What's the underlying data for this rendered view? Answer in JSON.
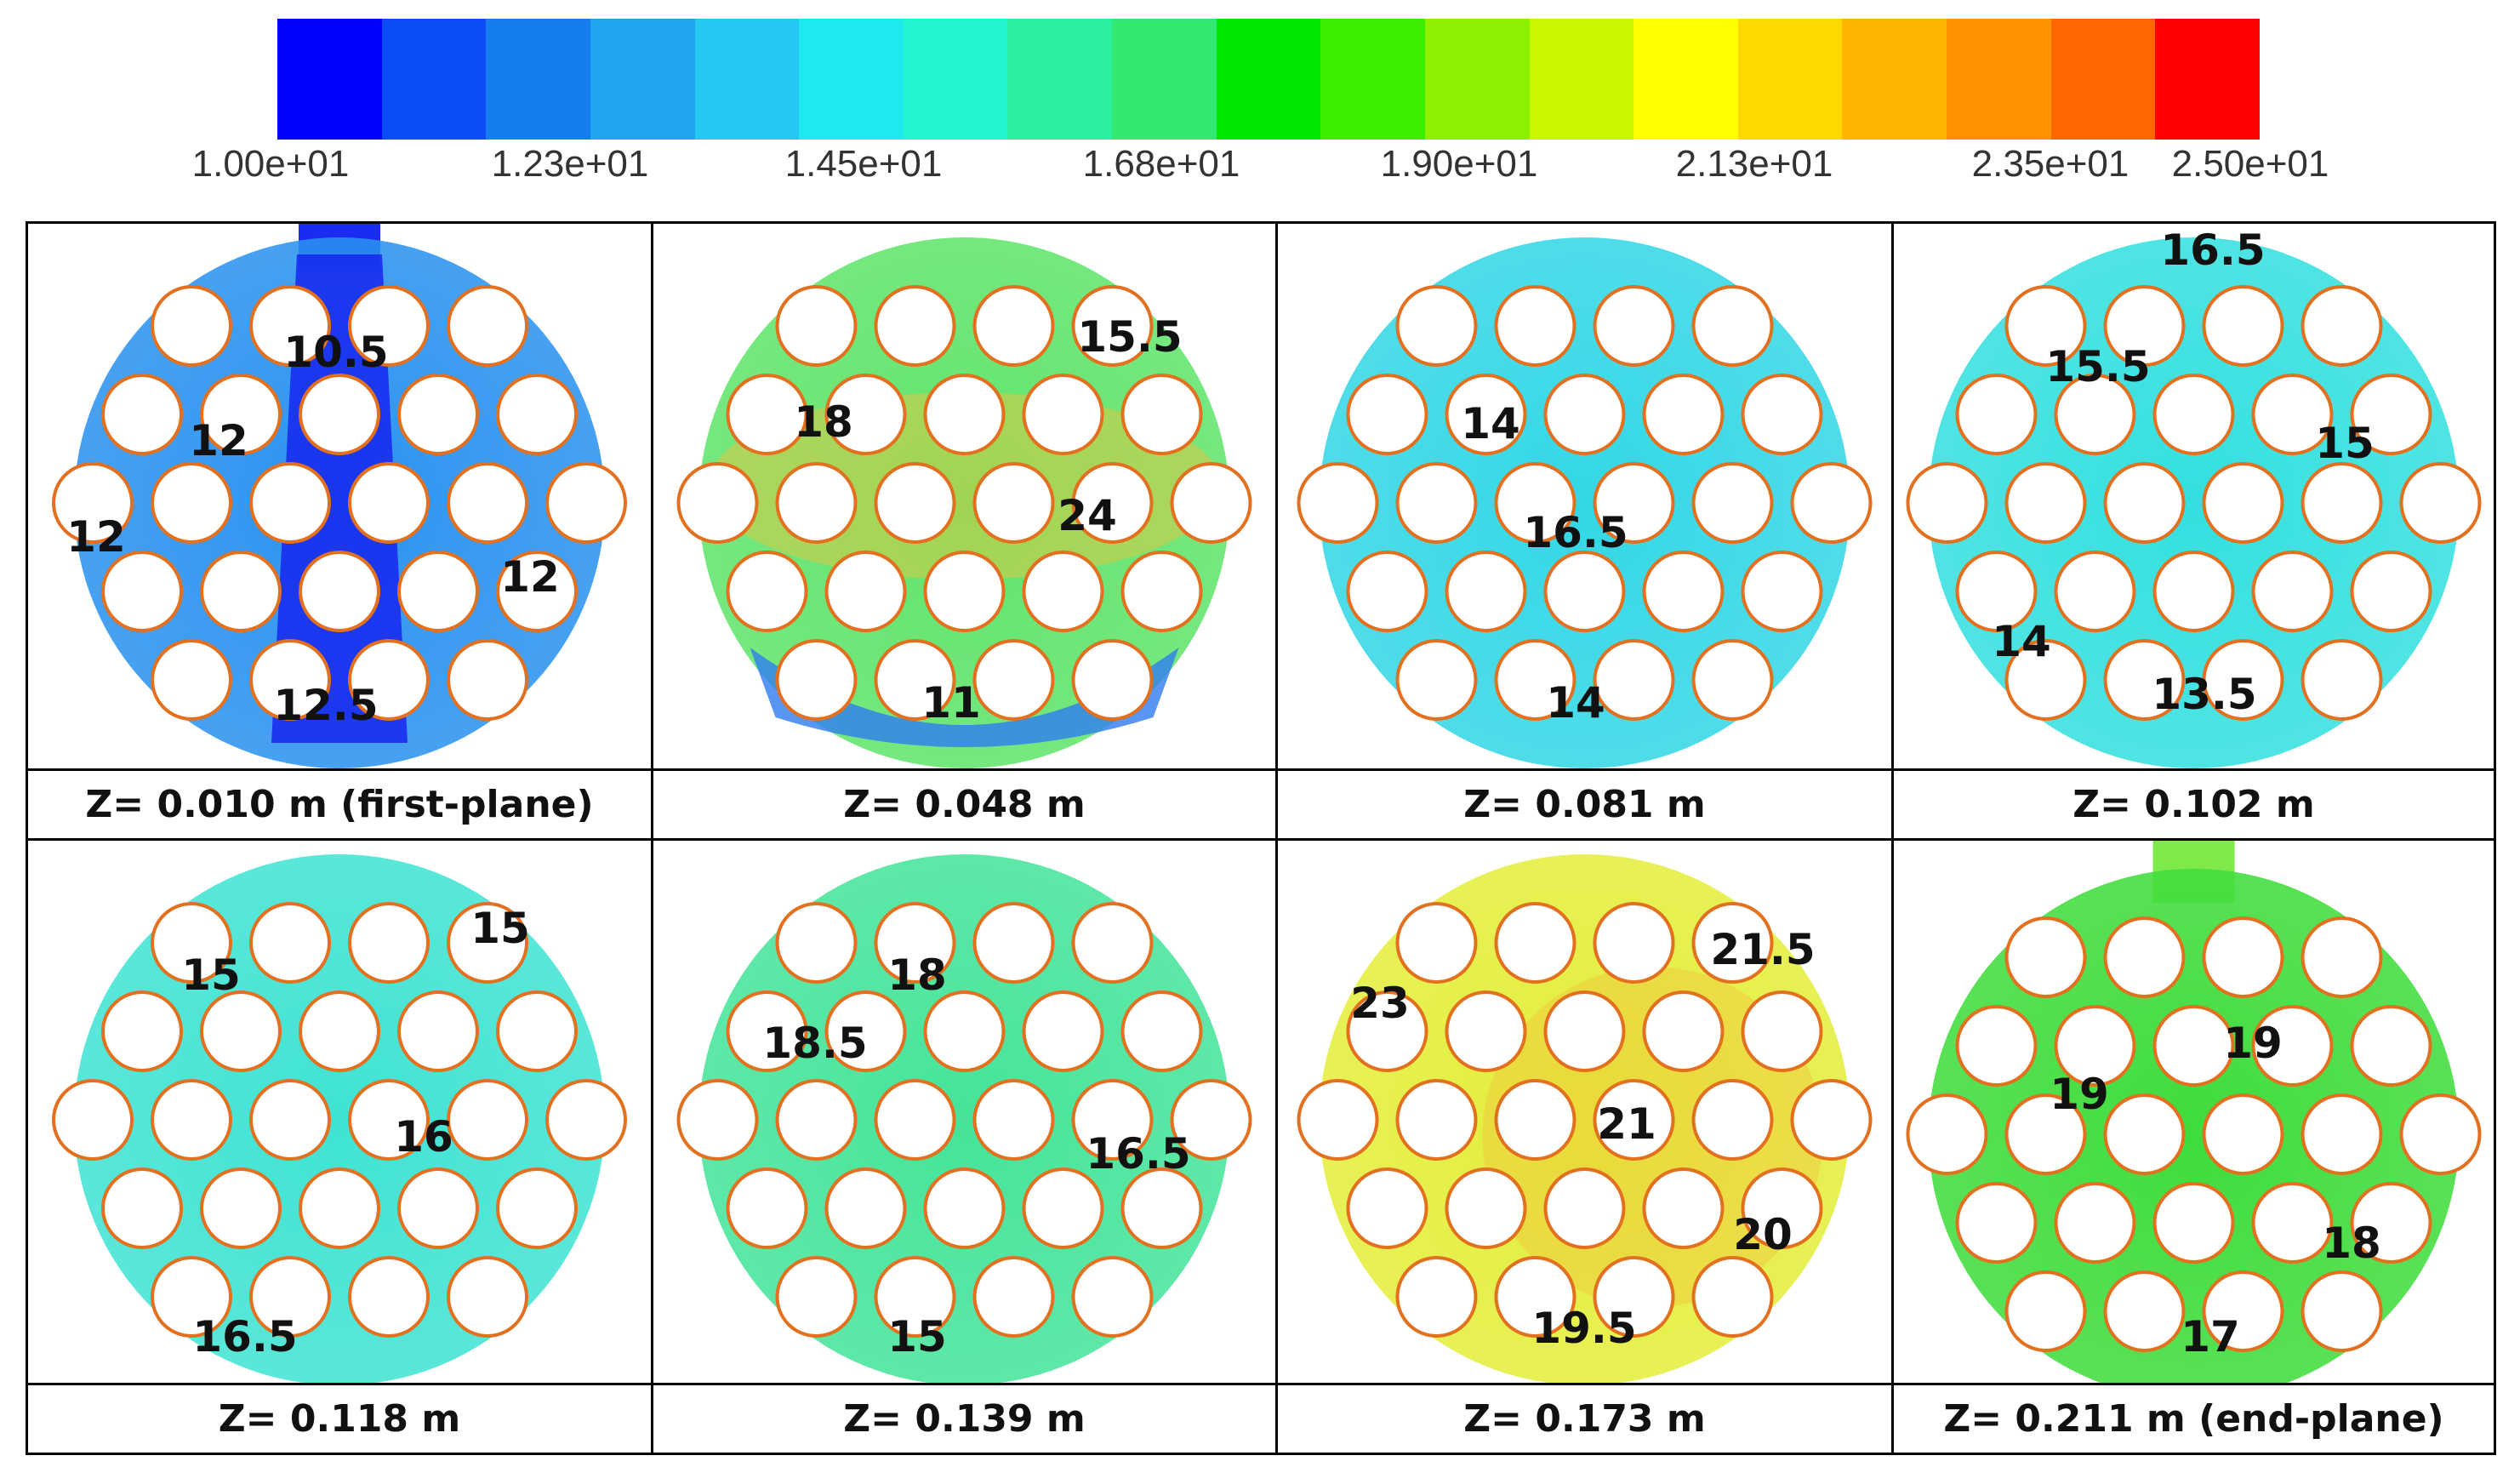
{
  "legend": {
    "colors": [
      "#0000ff",
      "#0a4cf5",
      "#157df0",
      "#20a6ee",
      "#25c8f0",
      "#20e8f0",
      "#22f5d0",
      "#2bf0a0",
      "#33e870",
      "#00e800",
      "#3cef00",
      "#8ef000",
      "#c9f700",
      "#ffff00",
      "#ffd800",
      "#ffb500",
      "#ff9200",
      "#ff6800",
      "#ff0000"
    ],
    "ticks": [
      "1.00e+01",
      "1.23e+01",
      "1.45e+01",
      "1.68e+01",
      "1.90e+01",
      "2.13e+01",
      "2.35e+01",
      "2.50e+01"
    ],
    "min": 10.0,
    "max": 25.0
  },
  "panels": [
    {
      "caption": "Z= 0.010 m (first-plane)",
      "base_color": "#2a92f0",
      "inlet": "top",
      "labels": [
        "10.5",
        "12",
        "12",
        "12",
        "12.5"
      ]
    },
    {
      "caption": "Z= 0.048 m",
      "base_color": "#5fe46a",
      "inlet": null,
      "labels": [
        "15.5",
        "18",
        "24",
        "11"
      ]
    },
    {
      "caption": "Z= 0.081 m",
      "base_color": "#33d7e6",
      "inlet": null,
      "labels": [
        "14",
        "16.5",
        "14"
      ]
    },
    {
      "caption": "Z= 0.102 m",
      "base_color": "#33e0df",
      "inlet": null,
      "labels": [
        "16.5",
        "15.5",
        "15",
        "14",
        "13.5"
      ]
    },
    {
      "caption": "Z= 0.118 m",
      "base_color": "#3fe3d3",
      "inlet": null,
      "labels": [
        "15",
        "15",
        "16",
        "16.5"
      ]
    },
    {
      "caption": "Z= 0.139 m",
      "base_color": "#45e49a",
      "inlet": null,
      "labels": [
        "18",
        "18.5",
        "16.5",
        "15"
      ]
    },
    {
      "caption": "Z= 0.173 m",
      "base_color": "#e3ee3a",
      "inlet": null,
      "labels": [
        "21.5",
        "23",
        "21",
        "20",
        "19.5"
      ]
    },
    {
      "caption": "Z= 0.211 m (end-plane)",
      "base_color": "#3fdc3c",
      "inlet": "top",
      "labels": [
        "19",
        "19",
        "18",
        "17"
      ]
    }
  ]
}
